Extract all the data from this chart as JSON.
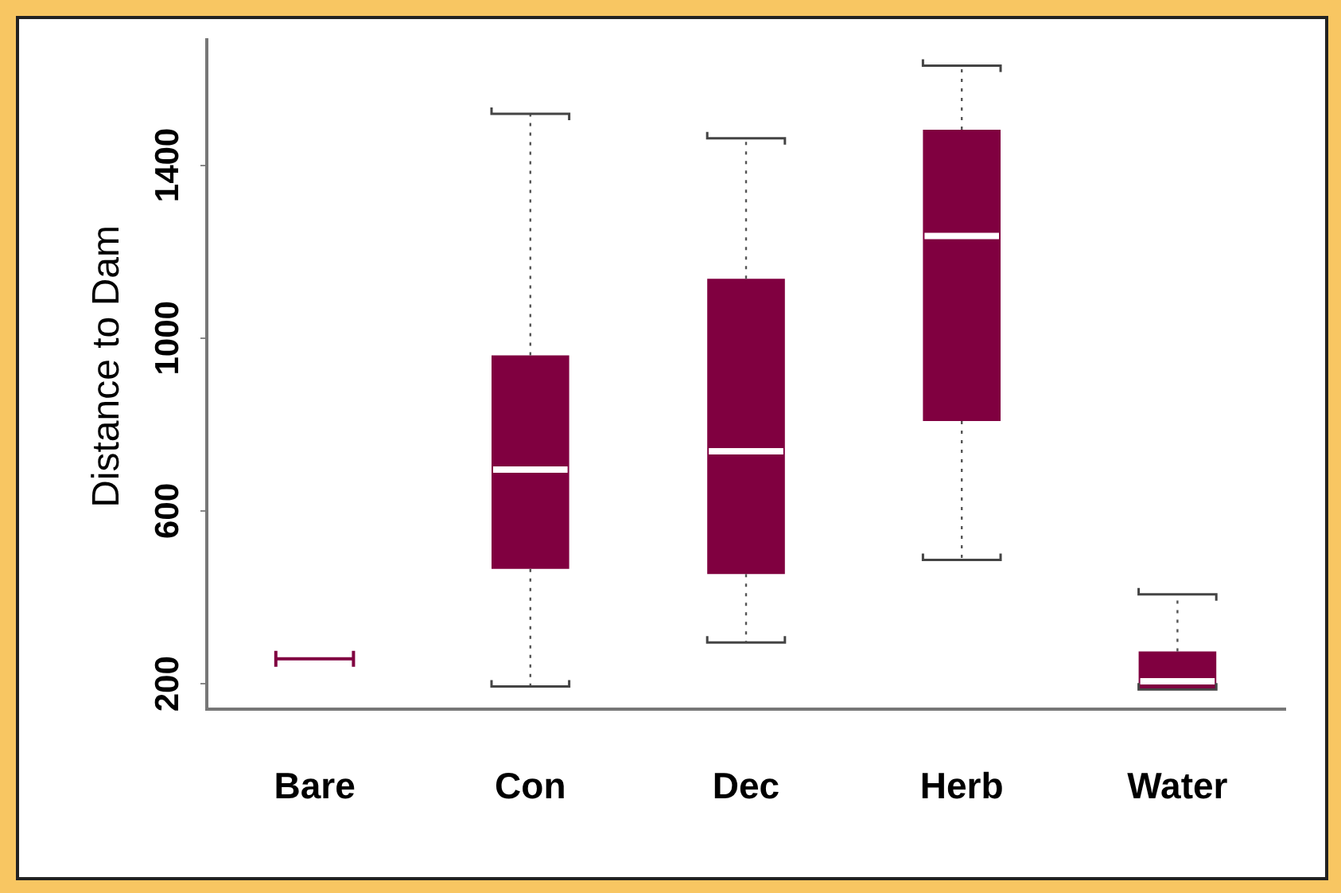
{
  "chart_data": {
    "type": "box",
    "ylabel": "Distance to Dam",
    "categories": [
      "Bare",
      "Con",
      "Dec",
      "Herb",
      "Water"
    ],
    "series": [
      {
        "color": "#800040",
        "boxes": [
          {
            "low": 258,
            "q1": 258,
            "median": 258,
            "q3": 258,
            "high": 258
          },
          {
            "low": 194,
            "q1": 466,
            "median": 696,
            "q3": 960,
            "high": 1519
          },
          {
            "low": 296,
            "q1": 454,
            "median": 738,
            "q3": 1137,
            "high": 1462
          },
          {
            "low": 487,
            "q1": 808,
            "median": 1236,
            "q3": 1482,
            "high": 1630
          },
          {
            "low": 187,
            "q1": 187,
            "median": 206,
            "q3": 275,
            "high": 407
          }
        ]
      }
    ],
    "ylim": [
      142,
      1690
    ],
    "yticks": [
      200,
      600,
      1000,
      1400
    ]
  }
}
